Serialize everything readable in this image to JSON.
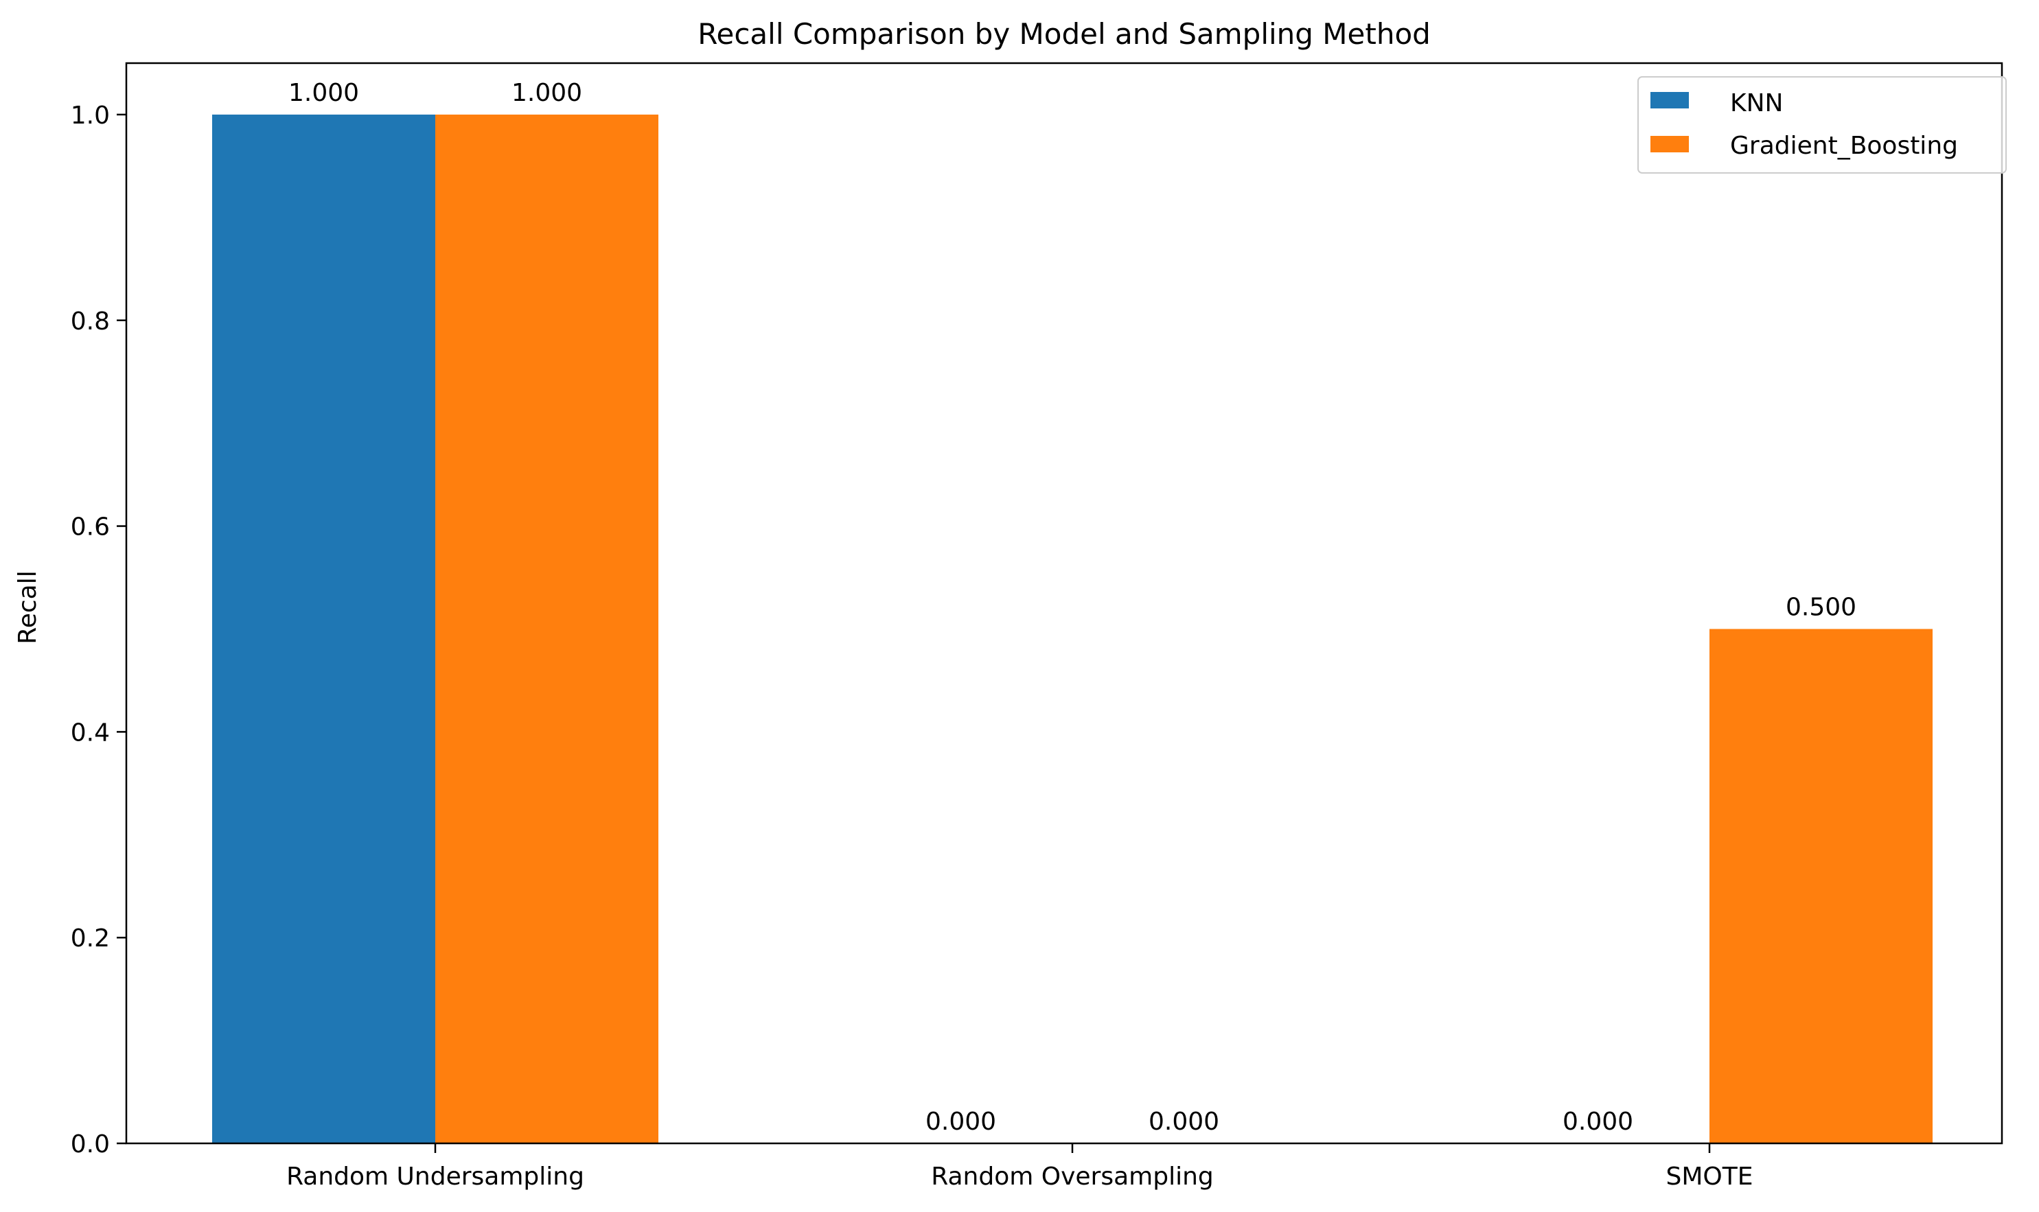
{
  "chart_data": {
    "type": "bar",
    "title": "Recall Comparison by Model and Sampling Method",
    "xlabel": "",
    "ylabel": "Recall",
    "categories": [
      "Random Undersampling",
      "Random Oversampling",
      "SMOTE"
    ],
    "series": [
      {
        "name": "KNN",
        "values": [
          1.0,
          0.0,
          0.0
        ],
        "labels": [
          "1.000",
          "0.000",
          "0.000"
        ],
        "color": "#1f77b4"
      },
      {
        "name": "Gradient_Boosting",
        "values": [
          1.0,
          0.0,
          0.5
        ],
        "labels": [
          "1.000",
          "0.000",
          "0.500"
        ],
        "color": "#ff7f0e"
      }
    ],
    "ylim": [
      0,
      1.05
    ],
    "yticks": [
      "0.0",
      "0.2",
      "0.4",
      "0.6",
      "0.8",
      "1.0"
    ],
    "legend_placement": "top-right",
    "grid": false
  }
}
